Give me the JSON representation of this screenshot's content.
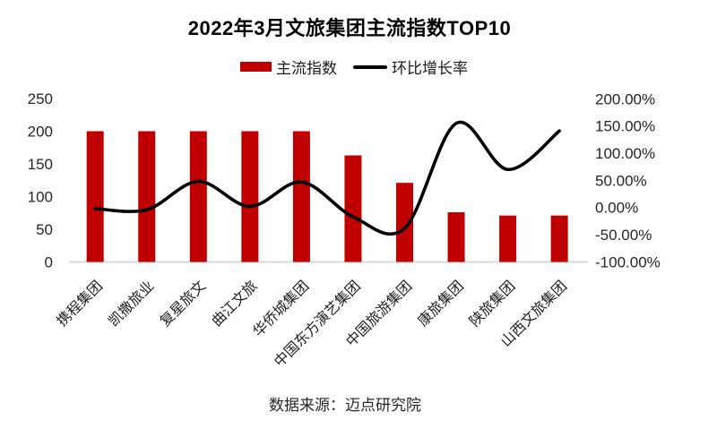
{
  "title": "2022年3月文旅集团主流指数TOP10",
  "legend": {
    "bar_label": "主流指数",
    "line_label": "环比增长率"
  },
  "source": "数据来源：迈点研究院",
  "colors": {
    "bar": "#c00000",
    "line": "#000000",
    "axis_line": "#d9d9d9",
    "text": "#262626"
  },
  "chart_data": {
    "type": "combo",
    "title": "2022年3月文旅集团主流指数TOP10",
    "categories": [
      "携程集团",
      "凯撒旅业",
      "复星旅文",
      "曲江文旅",
      "华侨城集团",
      "中国东方演艺集团",
      "中国旅游集团",
      "康旅集团",
      "陕旅集团",
      "山西文旅集团"
    ],
    "series": [
      {
        "name": "主流指数",
        "type": "bar",
        "axis": "left",
        "values": [
          200,
          200,
          200,
          200,
          200,
          163,
          121,
          76,
          71,
          71
        ]
      },
      {
        "name": "环比增长率",
        "type": "line",
        "axis": "right",
        "unit": "%",
        "values": [
          -2,
          -4,
          48,
          2,
          47,
          -17,
          -38,
          155,
          70,
          141
        ]
      }
    ],
    "left_axis": {
      "range": [
        0,
        250
      ],
      "tick_values": [
        0,
        50,
        100,
        150,
        200,
        250
      ],
      "tick_labels": [
        "0",
        "50",
        "100",
        "150",
        "200",
        "250"
      ]
    },
    "right_axis": {
      "range": [
        -100,
        200
      ],
      "tick_values": [
        -100,
        -50,
        0,
        50,
        100,
        150,
        200
      ],
      "tick_labels": [
        "-100.00%",
        "-50.00%",
        "0.00%",
        "50.00%",
        "100.00%",
        "150.00%",
        "200.00%"
      ]
    },
    "grid": false,
    "legend_position": "top",
    "smooth_line": true
  }
}
